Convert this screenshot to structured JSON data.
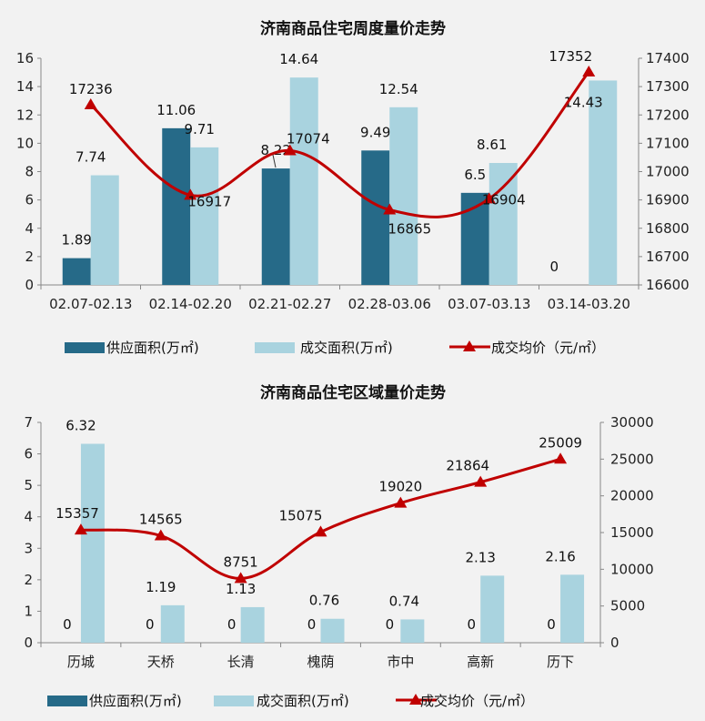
{
  "colors": {
    "supply": "#266a88",
    "deal": "#a9d3df",
    "price": "#c00000",
    "axis": "#888888",
    "background": "#f2f2f2"
  },
  "chart_data": [
    {
      "type": "bar",
      "title": "济南商品住宅周度量价走势",
      "categories": [
        "02.07-02.13",
        "02.14-02.20",
        "02.21-02.27",
        "02.28-03.06",
        "03.07-03.13",
        "03.14-03.20"
      ],
      "series": [
        {
          "name": "供应面积(万㎡)",
          "type": "bar",
          "axis": "left",
          "values": [
            1.89,
            11.06,
            8.22,
            9.49,
            6.5,
            0
          ]
        },
        {
          "name": "成交面积(万㎡)",
          "type": "bar",
          "axis": "left",
          "values": [
            7.74,
            9.71,
            14.64,
            12.54,
            8.61,
            14.43
          ]
        },
        {
          "name": "成交均价（元/㎡）",
          "type": "line",
          "axis": "right",
          "values": [
            17236,
            16917,
            17074,
            16865,
            16904,
            17352
          ]
        }
      ],
      "ylim_left": [
        0,
        16
      ],
      "yticks_left": [
        0,
        2,
        4,
        6,
        8,
        10,
        12,
        14,
        16
      ],
      "ylim_right": [
        16600,
        17400
      ],
      "yticks_right": [
        16600,
        16700,
        16800,
        16900,
        17000,
        17100,
        17200,
        17300,
        17400
      ],
      "legend_position": "bottom"
    },
    {
      "type": "bar",
      "title": "济南商品住宅区域量价走势",
      "categories": [
        "历城",
        "天桥",
        "长清",
        "槐荫",
        "市中",
        "高新",
        "历下"
      ],
      "series": [
        {
          "name": "供应面积(万㎡)",
          "type": "bar",
          "axis": "left",
          "values": [
            0,
            0,
            0,
            0,
            0,
            0,
            0
          ]
        },
        {
          "name": "成交面积(万㎡)",
          "type": "bar",
          "axis": "left",
          "values": [
            6.32,
            1.19,
            1.13,
            0.76,
            0.74,
            2.13,
            2.16
          ]
        },
        {
          "name": "成交均价（元/㎡）",
          "type": "line",
          "axis": "right",
          "values": [
            15357,
            14565,
            8751,
            15075,
            19020,
            21864,
            25009
          ]
        }
      ],
      "ylim_left": [
        0,
        7
      ],
      "yticks_left": [
        0,
        1,
        2,
        3,
        4,
        5,
        6,
        7
      ],
      "ylim_right": [
        0,
        30000
      ],
      "yticks_right": [
        0,
        5000,
        10000,
        15000,
        20000,
        25000,
        30000
      ],
      "legend_position": "bottom"
    }
  ]
}
